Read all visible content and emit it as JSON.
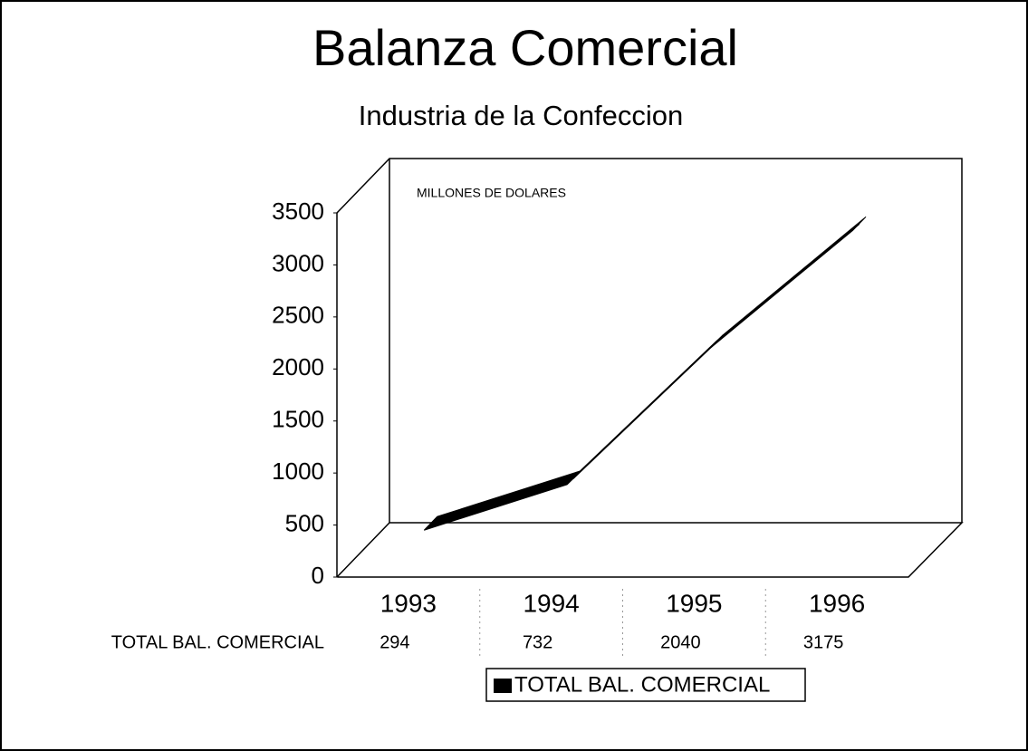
{
  "chart_data": {
    "type": "line3d",
    "title": "Balanza Comercial",
    "subtitle": "Industria de la Confeccion",
    "annotation": "MILLONES DE DOLARES",
    "categories": [
      "1993",
      "1994",
      "1995",
      "1996"
    ],
    "series": [
      {
        "name": "TOTAL BAL. COMERCIAL",
        "color": "#000000",
        "values": [
          294,
          732,
          2040,
          3175
        ]
      }
    ],
    "ylim": [
      0,
      3500
    ],
    "yticks": [
      0,
      500,
      1000,
      1500,
      2000,
      2500,
      3000,
      3500
    ],
    "grid": false,
    "legend": "bottom"
  }
}
